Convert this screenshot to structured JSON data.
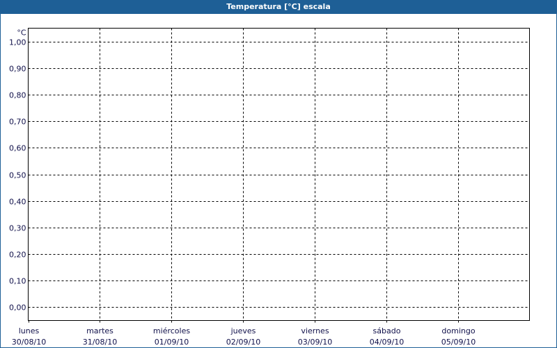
{
  "window": {
    "title": "Temperatura [°C] escala",
    "title_bar_color": "#1e5f96"
  },
  "chart_data": {
    "type": "line",
    "title": "Temperatura [°C] escala",
    "ylabel": "°C",
    "xlabel": "",
    "ylim": [
      0,
      1
    ],
    "yticks": [
      "0,00",
      "0,10",
      "0,20",
      "0,30",
      "0,40",
      "0,50",
      "0,60",
      "0,70",
      "0,80",
      "0,90",
      "1,00"
    ],
    "categories": [
      {
        "day": "lunes",
        "date": "30/08/10"
      },
      {
        "day": "martes",
        "date": "31/08/10"
      },
      {
        "day": "miércoles",
        "date": "01/09/10"
      },
      {
        "day": "jueves",
        "date": "02/09/10"
      },
      {
        "day": "viernes",
        "date": "03/09/10"
      },
      {
        "day": "sábado",
        "date": "04/09/10"
      },
      {
        "day": "domingo",
        "date": "05/09/10"
      }
    ],
    "series": [],
    "grid": true,
    "grid_style": "dashed"
  }
}
